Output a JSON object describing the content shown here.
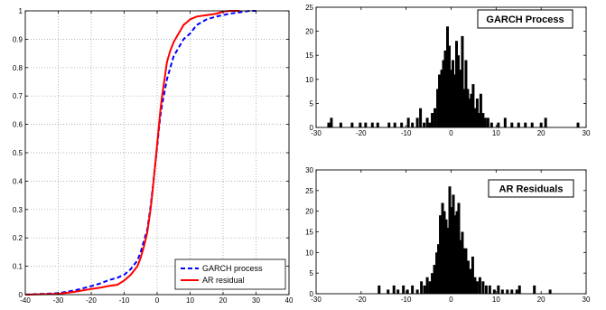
{
  "chart_data": [
    {
      "type": "line",
      "title": "",
      "xlabel": "",
      "ylabel": "",
      "xlim": [
        -40,
        40
      ],
      "ylim": [
        0,
        1
      ],
      "xticks": [
        "-40",
        "-30",
        "-20",
        "-10",
        "0",
        "10",
        "20",
        "30",
        "40"
      ],
      "yticks": [
        "0",
        "0.1",
        "0.2",
        "0.3",
        "0.4",
        "0.5",
        "0.6",
        "0.7",
        "0.8",
        "0.9",
        "1"
      ],
      "grid": true,
      "legend_position": "bottom-right",
      "series": [
        {
          "name": "GARCH process",
          "color": "#0000ff",
          "style": "dashed",
          "x": [
            -40,
            -30,
            -25,
            -20,
            -17,
            -15,
            -12,
            -10,
            -8,
            -6,
            -5,
            -4,
            -3,
            -2.5,
            -2,
            -1.5,
            -1,
            -0.5,
            0,
            0.5,
            1,
            1.5,
            2,
            2.5,
            3,
            4,
            5,
            6,
            7,
            8,
            10,
            12,
            15,
            18,
            20,
            22,
            25,
            28,
            30
          ],
          "y": [
            0,
            0.005,
            0.015,
            0.03,
            0.04,
            0.05,
            0.06,
            0.07,
            0.09,
            0.12,
            0.15,
            0.19,
            0.23,
            0.27,
            0.31,
            0.36,
            0.41,
            0.47,
            0.52,
            0.58,
            0.63,
            0.67,
            0.7,
            0.73,
            0.76,
            0.8,
            0.84,
            0.86,
            0.88,
            0.9,
            0.92,
            0.95,
            0.97,
            0.98,
            0.985,
            0.99,
            0.995,
            1,
            1
          ]
        },
        {
          "name": "AR residual",
          "color": "#ff0000",
          "style": "solid",
          "x": [
            -40,
            -30,
            -25,
            -20,
            -17,
            -15,
            -12,
            -10,
            -8,
            -6,
            -5,
            -4,
            -3,
            -2.5,
            -2,
            -1.5,
            -1,
            -0.5,
            0,
            0.5,
            1,
            1.5,
            2,
            2.5,
            3,
            4,
            5,
            6,
            7,
            8,
            9,
            10,
            12,
            15,
            18,
            20,
            22,
            25
          ],
          "y": [
            0,
            0.003,
            0.01,
            0.02,
            0.025,
            0.03,
            0.035,
            0.05,
            0.07,
            0.1,
            0.13,
            0.17,
            0.22,
            0.26,
            0.3,
            0.35,
            0.41,
            0.47,
            0.53,
            0.59,
            0.65,
            0.7,
            0.74,
            0.78,
            0.82,
            0.86,
            0.89,
            0.91,
            0.93,
            0.95,
            0.96,
            0.97,
            0.98,
            0.985,
            0.99,
            0.997,
            1,
            1
          ]
        }
      ]
    },
    {
      "type": "bar",
      "title": "GARCH Process",
      "xlabel": "",
      "ylabel": "",
      "xlim": [
        -30,
        30
      ],
      "ylim": [
        0,
        25
      ],
      "xticks": [
        "-30",
        "-20",
        "-10",
        "0",
        "10",
        "20",
        "30"
      ],
      "yticks": [
        "0",
        "5",
        "10",
        "15",
        "20",
        "25"
      ],
      "grid": false,
      "bin_width": 0.6,
      "bins": [
        [
          -27.2,
          1
        ],
        [
          -26.6,
          2
        ],
        [
          -24.5,
          1
        ],
        [
          -22.0,
          1
        ],
        [
          -20.2,
          1
        ],
        [
          -19.0,
          1
        ],
        [
          -17.5,
          1
        ],
        [
          -16.3,
          1
        ],
        [
          -13.8,
          1
        ],
        [
          -12.5,
          1
        ],
        [
          -11.0,
          1
        ],
        [
          -9.5,
          2
        ],
        [
          -8.6,
          1
        ],
        [
          -7.5,
          2
        ],
        [
          -6.8,
          4
        ],
        [
          -6.0,
          1
        ],
        [
          -5.3,
          2
        ],
        [
          -4.7,
          1
        ],
        [
          -4.2,
          3
        ],
        [
          -3.6,
          4
        ],
        [
          -3.0,
          8
        ],
        [
          -2.6,
          11
        ],
        [
          -2.1,
          12
        ],
        [
          -1.7,
          14
        ],
        [
          -1.3,
          16
        ],
        [
          -0.8,
          21
        ],
        [
          -0.4,
          17
        ],
        [
          0.0,
          12
        ],
        [
          0.4,
          14
        ],
        [
          0.8,
          11
        ],
        [
          1.2,
          18
        ],
        [
          1.6,
          15
        ],
        [
          2.0,
          12
        ],
        [
          2.5,
          19
        ],
        [
          2.9,
          8
        ],
        [
          3.3,
          14
        ],
        [
          3.7,
          8
        ],
        [
          4.1,
          6
        ],
        [
          4.5,
          7
        ],
        [
          4.9,
          9
        ],
        [
          5.3,
          4
        ],
        [
          5.8,
          6
        ],
        [
          6.2,
          3
        ],
        [
          6.6,
          7
        ],
        [
          7.1,
          3
        ],
        [
          7.6,
          2
        ],
        [
          8.2,
          2
        ],
        [
          9.0,
          1
        ],
        [
          10.5,
          1
        ],
        [
          12.0,
          2
        ],
        [
          13.5,
          1
        ],
        [
          15.0,
          1
        ],
        [
          16.5,
          1
        ],
        [
          18.0,
          1
        ],
        [
          20.0,
          1
        ],
        [
          21.0,
          2
        ],
        [
          28.2,
          1
        ]
      ]
    },
    {
      "type": "bar",
      "title": "AR Residuals",
      "xlabel": "",
      "ylabel": "",
      "xlim": [
        -30,
        30
      ],
      "ylim": [
        0,
        30
      ],
      "xticks": [
        "-30",
        "-20",
        "-10",
        "0",
        "10",
        "20",
        "30"
      ],
      "yticks": [
        "0",
        "5",
        "10",
        "15",
        "20",
        "25",
        "30"
      ],
      "grid": false,
      "bin_width": 0.6,
      "bins": [
        [
          -16.0,
          2
        ],
        [
          -14.0,
          1
        ],
        [
          -12.7,
          2
        ],
        [
          -11.8,
          1
        ],
        [
          -10.6,
          2
        ],
        [
          -9.7,
          1
        ],
        [
          -8.6,
          2
        ],
        [
          -7.5,
          1
        ],
        [
          -6.6,
          3
        ],
        [
          -5.9,
          2
        ],
        [
          -5.3,
          4
        ],
        [
          -4.7,
          3
        ],
        [
          -4.2,
          5
        ],
        [
          -3.7,
          7
        ],
        [
          -3.2,
          10
        ],
        [
          -2.8,
          12
        ],
        [
          -2.4,
          19
        ],
        [
          -1.9,
          22
        ],
        [
          -1.5,
          20
        ],
        [
          -1.1,
          18
        ],
        [
          -0.7,
          16
        ],
        [
          -0.3,
          26
        ],
        [
          0.1,
          21
        ],
        [
          0.5,
          24
        ],
        [
          0.9,
          19
        ],
        [
          1.3,
          20
        ],
        [
          1.7,
          22
        ],
        [
          2.1,
          13
        ],
        [
          2.5,
          15
        ],
        [
          2.9,
          11
        ],
        [
          3.3,
          11
        ],
        [
          3.8,
          8
        ],
        [
          4.3,
          6
        ],
        [
          4.8,
          9
        ],
        [
          5.3,
          4
        ],
        [
          5.8,
          3
        ],
        [
          6.4,
          4
        ],
        [
          7.1,
          3
        ],
        [
          7.8,
          2
        ],
        [
          8.6,
          2
        ],
        [
          9.6,
          1
        ],
        [
          10.5,
          2
        ],
        [
          11.4,
          1
        ],
        [
          12.5,
          1
        ],
        [
          13.5,
          1
        ],
        [
          14.6,
          1
        ],
        [
          15.2,
          2
        ],
        [
          18.5,
          2
        ],
        [
          22.0,
          1
        ]
      ]
    }
  ]
}
